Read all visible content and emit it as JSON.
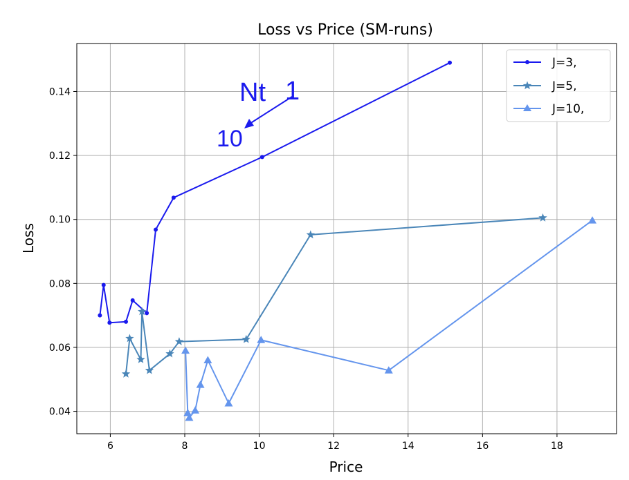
{
  "chart_data": {
    "type": "line",
    "title": "Loss vs Price (SM-runs)",
    "xlabel": "Price",
    "ylabel": "Loss",
    "xlim": [
      5.1,
      19.6
    ],
    "ylim": [
      0.033,
      0.155
    ],
    "xticks": [
      6,
      8,
      10,
      12,
      14,
      16,
      18
    ],
    "yticks": [
      0.04,
      0.06,
      0.08,
      0.1,
      0.12,
      0.14
    ],
    "xtick_labels": [
      "6",
      "8",
      "10",
      "12",
      "14",
      "16",
      "18"
    ],
    "ytick_labels": [
      "0.04",
      "0.06",
      "0.08",
      "0.10",
      "0.12",
      "0.14"
    ],
    "grid": true,
    "legend_position": "top-right",
    "series": [
      {
        "name": "J=3,",
        "color": "#1a1aee",
        "marker": "dot",
        "points": [
          [
            5.72,
            0.07
          ],
          [
            5.82,
            0.0795
          ],
          [
            5.98,
            0.0677
          ],
          [
            6.42,
            0.068
          ],
          [
            6.6,
            0.0747
          ],
          [
            6.98,
            0.0707
          ],
          [
            7.22,
            0.0968
          ],
          [
            7.7,
            0.1068
          ],
          [
            10.08,
            0.1195
          ],
          [
            15.12,
            0.149
          ]
        ]
      },
      {
        "name": "J=5,",
        "color": "#4a86b8",
        "marker": "star",
        "points": [
          [
            6.42,
            0.0517
          ],
          [
            6.52,
            0.0628
          ],
          [
            6.82,
            0.0562
          ],
          [
            6.85,
            0.0712
          ],
          [
            7.05,
            0.0528
          ],
          [
            7.6,
            0.058
          ],
          [
            7.85,
            0.0618
          ],
          [
            9.65,
            0.0625
          ],
          [
            11.38,
            0.0952
          ],
          [
            17.62,
            0.1005
          ]
        ]
      },
      {
        "name": "J=10,",
        "color": "#6495ed",
        "marker": "triangle",
        "points": [
          [
            8.02,
            0.059
          ],
          [
            8.08,
            0.0395
          ],
          [
            8.12,
            0.038
          ],
          [
            8.28,
            0.0403
          ],
          [
            8.42,
            0.0483
          ],
          [
            8.62,
            0.056
          ],
          [
            9.18,
            0.0425
          ],
          [
            10.05,
            0.0623
          ],
          [
            13.48,
            0.0528
          ],
          [
            18.95,
            0.0997
          ]
        ]
      }
    ],
    "annotations": [
      {
        "text": "Nt",
        "color": "#1a1aee"
      },
      {
        "text": "1",
        "color": "#1a1aee"
      },
      {
        "text": "10",
        "color": "#1a1aee"
      }
    ]
  }
}
